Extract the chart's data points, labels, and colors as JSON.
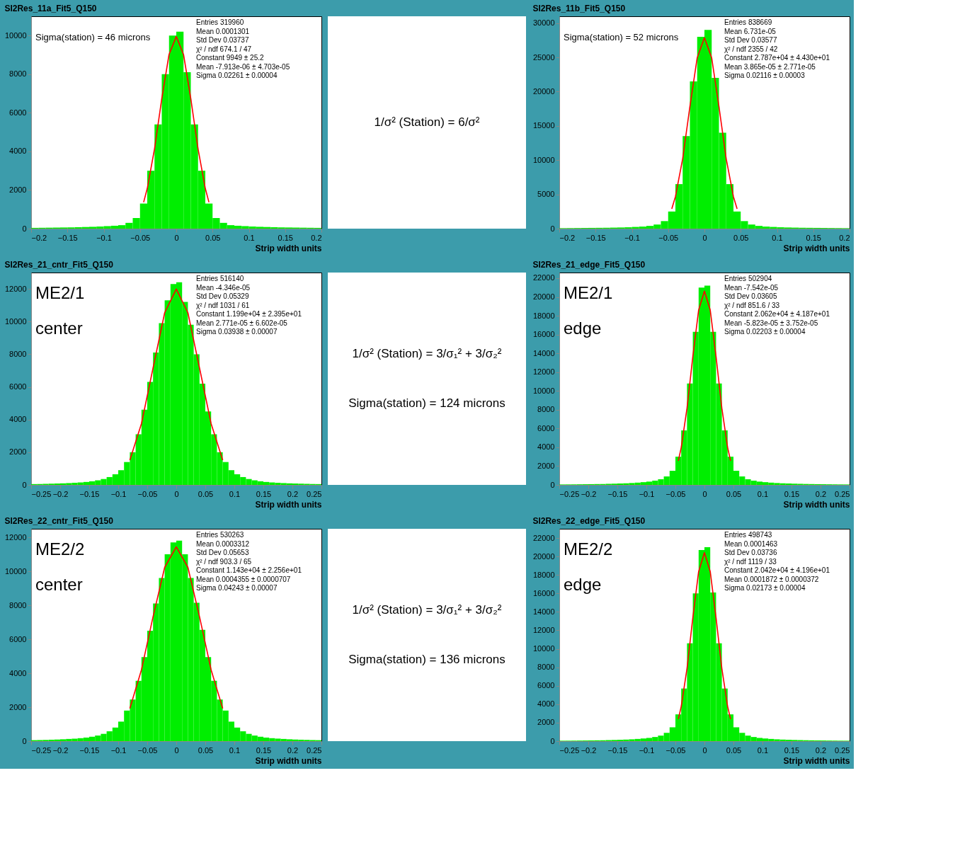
{
  "chart_data": [
    {
      "type": "histogram",
      "title": "SI2Res_11a_Fit5_Q150",
      "xlabel": "Strip width units",
      "color": "#00ee00",
      "bins": [
        -0.2,
        -0.19,
        -0.18,
        -0.17,
        -0.16,
        -0.15,
        -0.14,
        -0.13,
        -0.12,
        -0.11,
        -0.1,
        -0.09,
        -0.08,
        -0.07,
        -0.06,
        -0.05,
        -0.04,
        -0.03,
        -0.02,
        -0.01,
        0,
        0.01,
        0.02,
        0.03,
        0.04,
        0.05,
        0.06,
        0.07,
        0.08,
        0.09,
        0.1,
        0.11,
        0.12,
        0.13,
        0.14,
        0.15,
        0.16,
        0.17,
        0.18,
        0.19,
        0.2
      ],
      "values": [
        40,
        45,
        50,
        55,
        60,
        65,
        75,
        85,
        95,
        110,
        130,
        150,
        180,
        300,
        550,
        1300,
        3000,
        5400,
        8000,
        10000,
        10200,
        8100,
        5400,
        3000,
        1300,
        550,
        300,
        180,
        150,
        130,
        110,
        95,
        85,
        75,
        65,
        60,
        55,
        50,
        45,
        40
      ],
      "series": [
        {
          "type": "line",
          "color": "#ff0000",
          "x": [
            -0.045,
            -0.04,
            -0.03,
            -0.02,
            -0.01,
            0,
            0.01,
            0.02,
            0.03,
            0.04,
            0.045
          ],
          "values": [
            1370,
            2080,
            4130,
            6730,
            9020,
            9949,
            9020,
            6730,
            4130,
            2080,
            1370
          ]
        }
      ],
      "xlim": [
        -0.2,
        0.2
      ],
      "ylim": [
        0,
        11000
      ],
      "xticks": [
        -0.2,
        -0.15,
        -0.1,
        -0.05,
        0,
        0.05,
        0.1,
        0.15,
        0.2
      ],
      "yticks": [
        0,
        2000,
        4000,
        6000,
        8000,
        10000
      ],
      "annotations": [
        "Entries 319960",
        "Mean 0.0001301",
        "Std Dev 0.03737",
        "χ² / ndf 674.1 / 47",
        "Constant 9949 ± 25.2",
        "Mean -7.913e-06 ± 4.703e-05",
        "Sigma 0.02261 ± 0.00004",
        "Sigma(station) = 46 microns"
      ]
    },
    {
      "type": "other",
      "annotations": [
        "1/σ² (Station) = 6/σ²"
      ]
    },
    {
      "type": "histogram",
      "title": "SI2Res_11b_Fit5_Q150",
      "xlabel": "Strip width units",
      "color": "#00ee00",
      "bins": [
        -0.2,
        -0.19,
        -0.18,
        -0.17,
        -0.16,
        -0.15,
        -0.14,
        -0.13,
        -0.12,
        -0.11,
        -0.1,
        -0.09,
        -0.08,
        -0.07,
        -0.06,
        -0.05,
        -0.04,
        -0.03,
        -0.02,
        -0.01,
        0,
        0.01,
        0.02,
        0.03,
        0.04,
        0.05,
        0.06,
        0.07,
        0.08,
        0.09,
        0.1,
        0.11,
        0.12,
        0.13,
        0.14,
        0.15,
        0.16,
        0.17,
        0.18,
        0.19,
        0.2
      ],
      "values": [
        70,
        80,
        90,
        100,
        110,
        120,
        130,
        150,
        170,
        200,
        250,
        300,
        400,
        600,
        1100,
        2500,
        6500,
        13500,
        21500,
        28000,
        29000,
        22000,
        14000,
        6500,
        2500,
        1100,
        600,
        400,
        300,
        250,
        200,
        170,
        150,
        130,
        120,
        110,
        100,
        90,
        80,
        70
      ],
      "series": [
        {
          "type": "line",
          "color": "#ff0000",
          "x": [
            -0.045,
            -0.04,
            -0.03,
            -0.02,
            -0.01,
            0,
            0.01,
            0.02,
            0.03,
            0.04,
            0.045
          ],
          "values": [
            2900,
            4660,
            10200,
            17830,
            24920,
            27870,
            24920,
            17830,
            10200,
            4660,
            2900
          ]
        }
      ],
      "xlim": [
        -0.2,
        0.2
      ],
      "ylim": [
        0,
        31000
      ],
      "xticks": [
        -0.2,
        -0.15,
        -0.1,
        -0.05,
        0,
        0.05,
        0.1,
        0.15,
        0.2
      ],
      "yticks": [
        0,
        5000,
        10000,
        15000,
        20000,
        25000,
        30000
      ],
      "annotations": [
        "Entries 838669",
        "Mean 6.731e-05",
        "Std Dev 0.03577",
        "χ² / ndf 2355 / 42",
        "Constant 2.787e+04 ± 4.430e+01",
        "Mean 3.865e-05 ± 2.771e-05",
        "Sigma 0.02116 ± 0.00003",
        "Sigma(station) = 52 microns"
      ]
    },
    {
      "type": "histogram",
      "title": "SI2Res_21_cntr_Fit5_Q150",
      "xlabel": "Strip width units",
      "color": "#00ee00",
      "bins": [
        -0.25,
        -0.24,
        -0.23,
        -0.22,
        -0.21,
        -0.2,
        -0.19,
        -0.18,
        -0.17,
        -0.16,
        -0.15,
        -0.14,
        -0.13,
        -0.12,
        -0.11,
        -0.1,
        -0.09,
        -0.08,
        -0.07,
        -0.06,
        -0.05,
        -0.04,
        -0.03,
        -0.02,
        -0.01,
        0,
        0.01,
        0.02,
        0.03,
        0.04,
        0.05,
        0.06,
        0.07,
        0.08,
        0.09,
        0.1,
        0.11,
        0.12,
        0.13,
        0.14,
        0.15,
        0.16,
        0.17,
        0.18,
        0.19,
        0.2,
        0.21,
        0.22,
        0.23,
        0.24,
        0.25
      ],
      "values": [
        50,
        55,
        65,
        75,
        85,
        95,
        110,
        130,
        150,
        180,
        220,
        280,
        360,
        480,
        650,
        900,
        1400,
        2000,
        3100,
        4600,
        6300,
        8100,
        9900,
        11300,
        12300,
        12400,
        11200,
        9800,
        8000,
        6200,
        4500,
        3100,
        2000,
        1400,
        900,
        650,
        480,
        360,
        280,
        220,
        180,
        150,
        130,
        110,
        95,
        85,
        75,
        65,
        55,
        50
      ],
      "series": [
        {
          "type": "line",
          "color": "#ff0000",
          "x": [
            -0.08,
            -0.06,
            -0.04,
            -0.02,
            0,
            0.02,
            0.04,
            0.06,
            0.08
          ],
          "values": [
            1520,
            3750,
            7160,
            10540,
            11990,
            10540,
            7160,
            3750,
            1520
          ]
        }
      ],
      "xlim": [
        -0.25,
        0.25
      ],
      "ylim": [
        0,
        13000
      ],
      "xticks": [
        -0.25,
        -0.2,
        -0.15,
        -0.1,
        -0.05,
        0,
        0.05,
        0.1,
        0.15,
        0.2,
        0.25
      ],
      "yticks": [
        0,
        2000,
        4000,
        6000,
        8000,
        10000,
        12000
      ],
      "annotations": [
        "Entries 516140",
        "Mean -4.346e-05",
        "Std Dev 0.05329",
        "χ² / ndf 1031 / 61",
        "Constant 1.199e+04 ± 2.395e+01",
        "Mean 2.771e-05 ± 6.602e-05",
        "Sigma 0.03938 ± 0.00007",
        "ME2/1",
        "center"
      ]
    },
    {
      "type": "other",
      "annotations": [
        "1/σ² (Station) = 3/σ₁² + 3/σ₂²",
        "Sigma(station) = 124 microns"
      ]
    },
    {
      "type": "histogram",
      "title": "SI2Res_21_edge_Fit5_Q150",
      "xlabel": "Strip width units",
      "color": "#00ee00",
      "bins": [
        -0.25,
        -0.24,
        -0.23,
        -0.22,
        -0.21,
        -0.2,
        -0.19,
        -0.18,
        -0.17,
        -0.16,
        -0.15,
        -0.14,
        -0.13,
        -0.12,
        -0.11,
        -0.1,
        -0.09,
        -0.08,
        -0.07,
        -0.06,
        -0.05,
        -0.04,
        -0.03,
        -0.02,
        -0.01,
        0,
        0.01,
        0.02,
        0.03,
        0.04,
        0.05,
        0.06,
        0.07,
        0.08,
        0.09,
        0.1,
        0.11,
        0.12,
        0.13,
        0.14,
        0.15,
        0.16,
        0.17,
        0.18,
        0.19,
        0.2,
        0.21,
        0.22,
        0.23,
        0.24,
        0.25
      ],
      "values": [
        48,
        52,
        58,
        65,
        72,
        80,
        90,
        100,
        115,
        130,
        150,
        170,
        200,
        240,
        290,
        350,
        450,
        600,
        900,
        1500,
        3000,
        5800,
        10800,
        16300,
        21000,
        21200,
        16300,
        10800,
        5800,
        3000,
        1500,
        900,
        600,
        450,
        350,
        290,
        240,
        200,
        170,
        150,
        130,
        115,
        100,
        90,
        80,
        72,
        65,
        58,
        52,
        48
      ],
      "series": [
        {
          "type": "line",
          "color": "#ff0000",
          "x": [
            -0.045,
            -0.04,
            -0.03,
            -0.02,
            -0.01,
            0,
            0.01,
            0.02,
            0.03,
            0.04,
            0.045
          ],
          "values": [
            2560,
            3970,
            8160,
            13660,
            18600,
            20620,
            18600,
            13660,
            8160,
            3970,
            2560
          ]
        }
      ],
      "xlim": [
        -0.25,
        0.25
      ],
      "ylim": [
        0,
        22600
      ],
      "xticks": [
        -0.25,
        -0.2,
        -0.15,
        -0.1,
        -0.05,
        0,
        0.05,
        0.1,
        0.15,
        0.2,
        0.25
      ],
      "yticks": [
        0,
        2000,
        4000,
        6000,
        8000,
        10000,
        12000,
        14000,
        16000,
        18000,
        20000,
        22000
      ],
      "annotations": [
        "Entries 502904",
        "Mean -7.542e-05",
        "Std Dev 0.03605",
        "χ² / ndf 851.6 / 33",
        "Constant 2.062e+04 ± 4.187e+01",
        "Mean -5.823e-05 ± 3.752e-05",
        "Sigma 0.02203 ± 0.00004",
        "ME2/1",
        "edge"
      ]
    },
    {
      "type": "histogram",
      "title": "SI2Res_22_cntr_Fit5_Q150",
      "xlabel": "Strip width units",
      "color": "#00ee00",
      "bins": [
        -0.25,
        -0.24,
        -0.23,
        -0.22,
        -0.21,
        -0.2,
        -0.19,
        -0.18,
        -0.17,
        -0.16,
        -0.15,
        -0.14,
        -0.13,
        -0.12,
        -0.11,
        -0.1,
        -0.09,
        -0.08,
        -0.07,
        -0.06,
        -0.05,
        -0.04,
        -0.03,
        -0.02,
        -0.01,
        0,
        0.01,
        0.02,
        0.03,
        0.04,
        0.05,
        0.06,
        0.07,
        0.08,
        0.09,
        0.1,
        0.11,
        0.12,
        0.13,
        0.14,
        0.15,
        0.16,
        0.17,
        0.18,
        0.19,
        0.2,
        0.21,
        0.22,
        0.23,
        0.24,
        0.25
      ],
      "values": [
        58,
        65,
        75,
        85,
        95,
        110,
        130,
        150,
        175,
        210,
        260,
        330,
        430,
        580,
        800,
        1150,
        1800,
        2450,
        3550,
        4950,
        6500,
        8100,
        9600,
        11000,
        11700,
        11800,
        11000,
        9600,
        8150,
        6550,
        4950,
        3550,
        2450,
        1800,
        1150,
        800,
        580,
        430,
        330,
        260,
        210,
        175,
        150,
        130,
        110,
        95,
        85,
        75,
        65,
        58
      ],
      "series": [
        {
          "type": "line",
          "color": "#ff0000",
          "x": [
            -0.08,
            -0.06,
            -0.04,
            -0.02,
            0,
            0.02,
            0.04,
            0.06,
            0.08
          ],
          "values": [
            1930,
            4200,
            7330,
            10230,
            11430,
            10230,
            7330,
            4200,
            1930
          ]
        }
      ],
      "xlim": [
        -0.25,
        0.25
      ],
      "ylim": [
        0,
        12500
      ],
      "xticks": [
        -0.25,
        -0.2,
        -0.15,
        -0.1,
        -0.05,
        0,
        0.05,
        0.1,
        0.15,
        0.2,
        0.25
      ],
      "yticks": [
        0,
        2000,
        4000,
        6000,
        8000,
        10000,
        12000
      ],
      "annotations": [
        "Entries 530263",
        "Mean 0.0003312",
        "Std Dev 0.05653",
        "χ² / ndf 903.3 / 65",
        "Constant 1.143e+04 ± 2.256e+01",
        "Mean 0.0004355 ± 0.0000707",
        "Sigma 0.04243 ± 0.00007",
        "ME2/2",
        "center"
      ]
    },
    {
      "type": "other",
      "annotations": [
        "1/σ² (Station) = 3/σ₁² + 3/σ₂²",
        "Sigma(station) = 136 microns"
      ]
    },
    {
      "type": "histogram",
      "title": "SI2Res_22_edge_Fit5_Q150",
      "xlabel": "Strip width units",
      "color": "#00ee00",
      "bins": [
        -0.25,
        -0.24,
        -0.23,
        -0.22,
        -0.21,
        -0.2,
        -0.19,
        -0.18,
        -0.17,
        -0.16,
        -0.15,
        -0.14,
        -0.13,
        -0.12,
        -0.11,
        -0.1,
        -0.09,
        -0.08,
        -0.07,
        -0.06,
        -0.05,
        -0.04,
        -0.03,
        -0.02,
        -0.01,
        0,
        0.01,
        0.02,
        0.03,
        0.04,
        0.05,
        0.06,
        0.07,
        0.08,
        0.09,
        0.1,
        0.11,
        0.12,
        0.13,
        0.14,
        0.15,
        0.16,
        0.17,
        0.18,
        0.19,
        0.2,
        0.21,
        0.22,
        0.23,
        0.24,
        0.25
      ],
      "values": [
        48,
        52,
        58,
        65,
        72,
        80,
        90,
        100,
        115,
        130,
        150,
        170,
        200,
        240,
        290,
        350,
        450,
        600,
        900,
        1500,
        2900,
        5700,
        10600,
        16000,
        20700,
        21000,
        16100,
        10600,
        5700,
        2900,
        1500,
        900,
        600,
        450,
        350,
        290,
        240,
        200,
        170,
        150,
        130,
        115,
        100,
        90,
        80,
        72,
        65,
        58,
        52,
        48
      ],
      "series": [
        {
          "type": "line",
          "color": "#ff0000",
          "x": [
            -0.045,
            -0.04,
            -0.03,
            -0.02,
            -0.01,
            0,
            0.01,
            0.02,
            0.03,
            0.04,
            0.045
          ],
          "values": [
            2390,
            3750,
            7870,
            13370,
            18370,
            20420,
            18370,
            13370,
            7870,
            3750,
            2390
          ]
        }
      ],
      "xlim": [
        -0.25,
        0.25
      ],
      "ylim": [
        0,
        23000
      ],
      "xticks": [
        -0.25,
        -0.2,
        -0.15,
        -0.1,
        -0.05,
        0,
        0.05,
        0.1,
        0.15,
        0.2,
        0.25
      ],
      "yticks": [
        0,
        2000,
        4000,
        6000,
        8000,
        10000,
        12000,
        14000,
        16000,
        18000,
        20000,
        22000
      ],
      "annotations": [
        "Entries 498743",
        "Mean 0.0001463",
        "Std Dev 0.03736",
        "χ² / ndf 1119 / 33",
        "Constant 2.042e+04 ± 4.196e+01",
        "Mean 0.0001872 ± 0.0000372",
        "Sigma 0.02173 ± 0.00004",
        "ME2/2",
        "edge"
      ]
    }
  ]
}
